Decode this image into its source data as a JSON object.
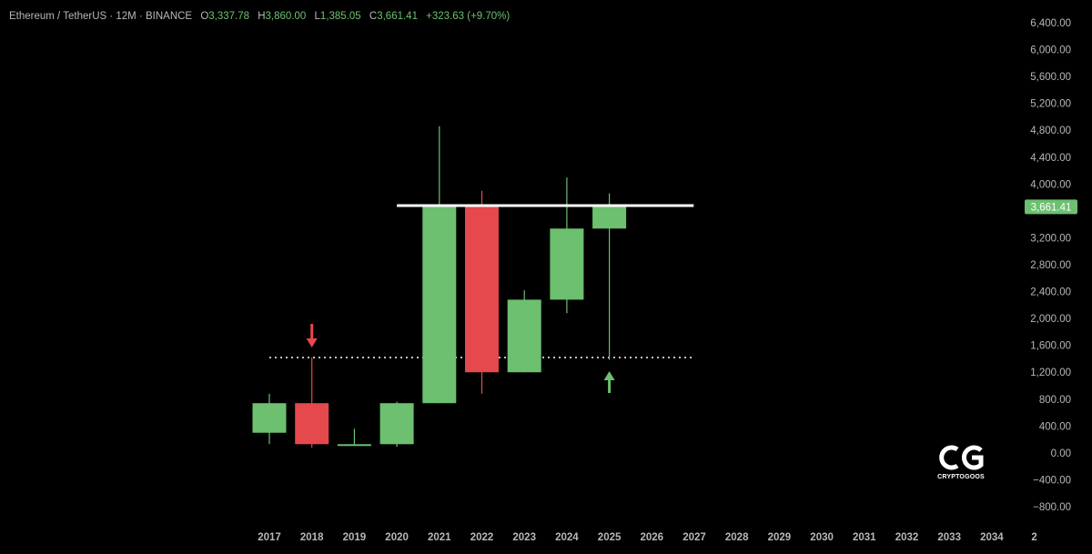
{
  "header": {
    "pair": "Ethereum / TetherUS · 12M · BINANCE",
    "open_label": "O",
    "open": "3,337.78",
    "high_label": "H",
    "high": "3,860.00",
    "low_label": "L",
    "low": "1,385.05",
    "close_label": "C",
    "close": "3,661.41",
    "change": "+323.63 (+9.70%)"
  },
  "logo": {
    "text": "CRYPTOGOOS"
  },
  "chart_data": {
    "type": "candlestick",
    "title": "Ethereum / TetherUS · 12M · BINANCE",
    "colors": {
      "up": "#6cc06f",
      "down": "#e5484d",
      "background": "#000000",
      "axis_text": "#b7b7b7",
      "resistance_line": "#ffffff",
      "last_price_badge": "#6cc06f"
    },
    "x_ticks": [
      "2017",
      "2018",
      "2019",
      "2020",
      "2021",
      "2022",
      "2023",
      "2024",
      "2025",
      "2026",
      "2027",
      "2028",
      "2029",
      "2030",
      "2031",
      "2032",
      "2033",
      "2034",
      "2"
    ],
    "y_ticks": [
      "6,400.00",
      "6,000.00",
      "5,600.00",
      "5,200.00",
      "4,800.00",
      "4,400.00",
      "4,000.00",
      "3,200.00",
      "2,800.00",
      "2,400.00",
      "2,000.00",
      "1,600.00",
      "1,200.00",
      "800.00",
      "400.00",
      "0.00",
      "−400.00",
      "−800.00"
    ],
    "ylim": [
      -800,
      6400
    ],
    "candles": [
      {
        "year": "2017",
        "open": 300,
        "high": 880,
        "low": 130,
        "close": 740
      },
      {
        "year": "2018",
        "open": 740,
        "high": 1420,
        "low": 80,
        "close": 130
      },
      {
        "year": "2019",
        "open": 130,
        "high": 360,
        "low": 110,
        "close": 130
      },
      {
        "year": "2020",
        "open": 130,
        "high": 760,
        "low": 90,
        "close": 740
      },
      {
        "year": "2021",
        "open": 740,
        "high": 4860,
        "low": 740,
        "close": 3680
      },
      {
        "year": "2022",
        "open": 3680,
        "high": 3900,
        "low": 880,
        "close": 1200
      },
      {
        "year": "2023",
        "open": 1200,
        "high": 2420,
        "low": 1200,
        "close": 2280
      },
      {
        "year": "2024",
        "open": 2280,
        "high": 4100,
        "low": 2080,
        "close": 3337.78
      },
      {
        "year": "2025",
        "open": 3337.78,
        "high": 3860.0,
        "low": 1385.05,
        "close": 3661.41
      }
    ],
    "resistance_level": 3680,
    "resistance_span": [
      "2020",
      "2026"
    ],
    "support_level": 1420,
    "support_span": [
      "2017",
      "2026"
    ],
    "last_price": 3661.41,
    "last_price_label": "3,661.41",
    "annotations": [
      {
        "type": "arrow-down",
        "year": "2018",
        "color": "#e5484d"
      },
      {
        "type": "arrow-up",
        "year": "2025",
        "color": "#6cc06f"
      }
    ]
  }
}
